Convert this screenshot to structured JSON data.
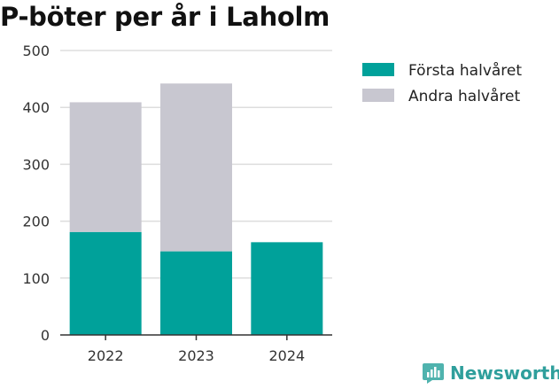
{
  "title": "P-böter per år i Laholm",
  "brand": {
    "name": "Newsworthy"
  },
  "colors": {
    "series1": "#00a19a",
    "series2": "#c8c7d0",
    "grid": "#dddddd",
    "axis": "#333333",
    "brand": "#2f9f9c"
  },
  "chart_data": {
    "type": "bar",
    "stacked": true,
    "title": "P-böter per år i Laholm",
    "categories": [
      "2022",
      "2023",
      "2024"
    ],
    "series": [
      {
        "name": "Första halvåret",
        "values": [
          181,
          147,
          163
        ]
      },
      {
        "name": "Andra halvåret",
        "values": [
          228,
          295,
          null
        ]
      }
    ],
    "ylim": [
      0,
      500
    ],
    "yticks": [
      0,
      100,
      200,
      300,
      400,
      500
    ],
    "xlabel": "",
    "ylabel": "",
    "grid": true,
    "legend": "right"
  }
}
